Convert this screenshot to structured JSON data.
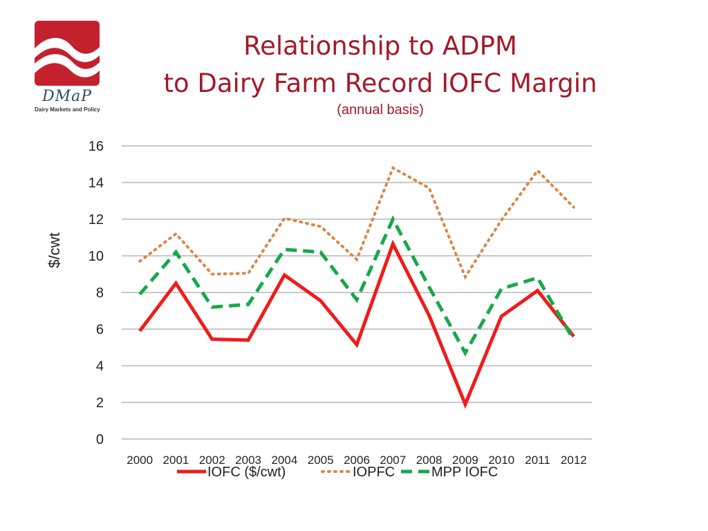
{
  "logo": {
    "wordmark": "DMaP",
    "tagline": "Dairy Markets and Policy",
    "badge_color": "#c4212f"
  },
  "header": {
    "title_line1": "Relationship to ADPM",
    "title_line2": "to Dairy Farm Record IOFC Margin",
    "subtitle": "(annual basis)"
  },
  "chart_data": {
    "type": "line",
    "xlabel": "",
    "ylabel": "$/cwt",
    "ylim": [
      0,
      16
    ],
    "yticks": [
      0,
      2,
      4,
      6,
      8,
      10,
      12,
      14,
      16
    ],
    "grid": true,
    "legend_position": "bottom",
    "categories": [
      "2000",
      "2001",
      "2002",
      "2003",
      "2004",
      "2005",
      "2006",
      "2007",
      "2008",
      "2009",
      "2010",
      "2011",
      "2012"
    ],
    "series": [
      {
        "name": "IOFC ($/cwt)",
        "color": "#ee1c1c",
        "style": "solid",
        "values": [
          5.9,
          8.5,
          5.45,
          5.4,
          8.95,
          7.55,
          5.15,
          10.65,
          6.75,
          1.9,
          6.7,
          8.1,
          5.6
        ]
      },
      {
        "name": "IOPFC",
        "color": "#d9874a",
        "style": "dotted",
        "values": [
          9.7,
          11.2,
          9.0,
          9.05,
          12.05,
          11.6,
          9.8,
          14.8,
          13.7,
          8.85,
          11.95,
          14.65,
          12.65
        ]
      },
      {
        "name": "MPP IOFC",
        "color": "#16a84a",
        "style": "dashed",
        "values": [
          7.9,
          10.2,
          7.2,
          7.35,
          10.35,
          10.2,
          7.6,
          12.0,
          8.3,
          4.7,
          8.2,
          8.8,
          5.4
        ]
      }
    ]
  }
}
